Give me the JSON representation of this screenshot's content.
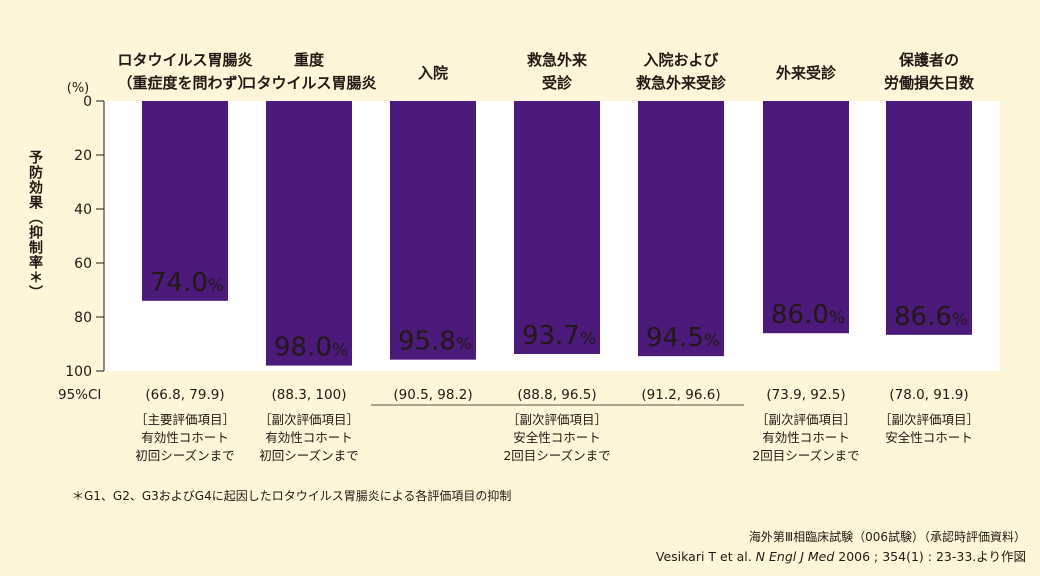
{
  "chart_data": {
    "type": "bar",
    "categories": [
      [
        "ロタウイルス胃腸炎",
        "（重症度を問わず）"
      ],
      [
        "重度",
        "ロタウイルス胃腸炎"
      ],
      [
        "入院"
      ],
      [
        "救急外来",
        "受診"
      ],
      [
        "入院および",
        "救急外来受診"
      ],
      [
        "外来受診"
      ],
      [
        "保護者の",
        "労働損失日数"
      ]
    ],
    "values": [
      74.0,
      98.0,
      95.8,
      93.7,
      94.5,
      86.0,
      86.6
    ],
    "value_labels": [
      "74.0",
      "98.0",
      "95.8",
      "93.7",
      "94.5",
      "86.0",
      "86.6"
    ],
    "value_unit": "%",
    "ci_label": "95%CI",
    "ci": [
      "(66.8, 79.9)",
      "(88.3, 100)",
      "(90.5, 98.2)",
      "(88.8, 96.5)",
      "(91.2, 96.6)",
      "(73.9, 92.5)",
      "(78.0, 91.9)"
    ],
    "notes": [
      [
        "［主要評価項目］",
        "有効性コホート",
        "初回シーズンまで"
      ],
      [
        "［副次評価項目］",
        "有効性コホート",
        "初回シーズンまで"
      ],
      [],
      [
        "［副次評価項目］",
        "安全性コホート",
        "2回目シーズンまで"
      ],
      [],
      [
        "［副次評価項目］",
        "有効性コホート",
        "2回目シーズンまで"
      ],
      [
        "［副次評価項目］",
        "安全性コホート"
      ]
    ],
    "ylabel": "予防効果（抑制率＊）",
    "yunit": "(%)",
    "yticks": [
      0,
      20,
      40,
      60,
      80,
      100
    ],
    "ylim": [
      0,
      100
    ],
    "y_inverted": true,
    "colors": {
      "bar": "#4b1a7a",
      "plot_bg": "#ffffff",
      "page_bg": "#fdf6d8"
    }
  },
  "footnote": "＊G1、G2、G3およびG4に起因したロタウイルス胃腸炎による各評価項目の抑制",
  "source": {
    "line1": "海外第Ⅲ相臨床試験（006試験）（承認時評価資料）",
    "line2_pre": "Vesikari T et al. ",
    "line2_journal": "N Engl J Med",
    "line2_post": " 2006 ; 354(1) : 23-33.より作図"
  }
}
